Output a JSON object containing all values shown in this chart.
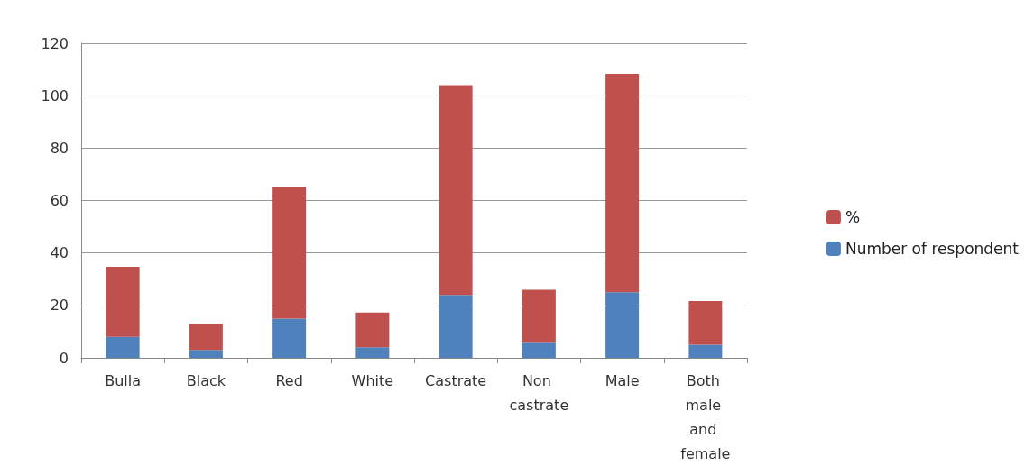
{
  "chart_data": {
    "type": "bar",
    "stacked": true,
    "categories": [
      "Bulla",
      "Black",
      "Red",
      "White",
      "Castrate",
      "Non castrate",
      "Male",
      "Both male and female"
    ],
    "series": [
      {
        "name": "Number of respondent",
        "color": "#4f81bd",
        "values": [
          8,
          3,
          15,
          4,
          24,
          6,
          25,
          5
        ]
      },
      {
        "name": "%",
        "color": "#c0504d",
        "values": [
          26.7,
          10,
          50,
          13.3,
          80,
          20,
          83.3,
          16.7
        ]
      }
    ],
    "ylim": [
      0,
      120
    ],
    "yticks": [
      0,
      20,
      40,
      60,
      80,
      100,
      120
    ],
    "grid": "y",
    "legend": "right"
  }
}
